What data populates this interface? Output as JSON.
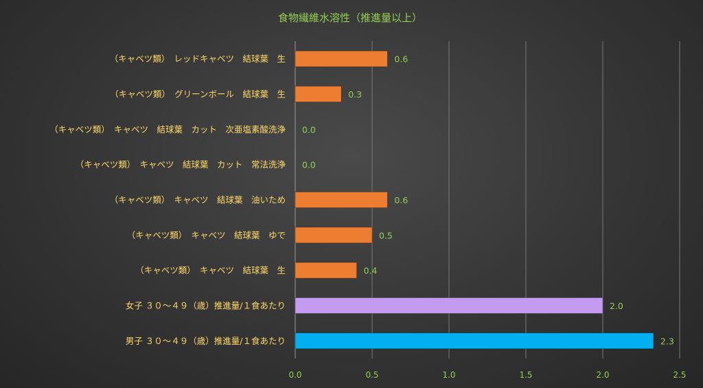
{
  "chart_data": {
    "type": "bar",
    "orientation": "horizontal",
    "title": "食物繊維水溶性（推進量以上）",
    "categories": [
      "（キャベツ類）　レッドキャベツ　結球葉　生",
      "（キャベツ類）　グリーンボール　結球葉　生",
      "（キャベツ類）　キャベツ　結球葉　カット　次亜塩素酸洗浄",
      "（キャベツ類）　キャベツ　結球葉　カット　常法洗浄",
      "（キャベツ類）　キャベツ　結球葉　油いため",
      "（キャベツ類）　キャベツ　結球葉　ゆで",
      "（キャベツ類）　キャベツ　結球葉　生",
      "女子 ３０～４９（歳）推進量/１食あたり",
      "男子 ３０～４９（歳）推進量/１食あたり"
    ],
    "values": [
      0.6,
      0.3,
      0.0,
      0.0,
      0.6,
      0.5,
      0.4,
      2.0,
      2.33
    ],
    "value_labels": [
      "0.6",
      "0.3",
      "0.0",
      "0.0",
      "0.6",
      "0.5",
      "0.4",
      "2.0",
      "2.3"
    ],
    "bar_colors": [
      "#ed7d31",
      "#ed7d31",
      "#ed7d31",
      "#ed7d31",
      "#ed7d31",
      "#ed7d31",
      "#ed7d31",
      "#c39bf0",
      "#00b0f0"
    ],
    "xlim": [
      0,
      2.5
    ],
    "x_ticks": [
      0.0,
      0.5,
      1.0,
      1.5,
      2.0,
      2.5
    ],
    "x_tick_labels": [
      "0.0",
      "0.5",
      "1.0",
      "1.5",
      "2.0",
      "2.5"
    ],
    "xlabel": "",
    "ylabel": "",
    "grid": true,
    "legend": "none"
  }
}
